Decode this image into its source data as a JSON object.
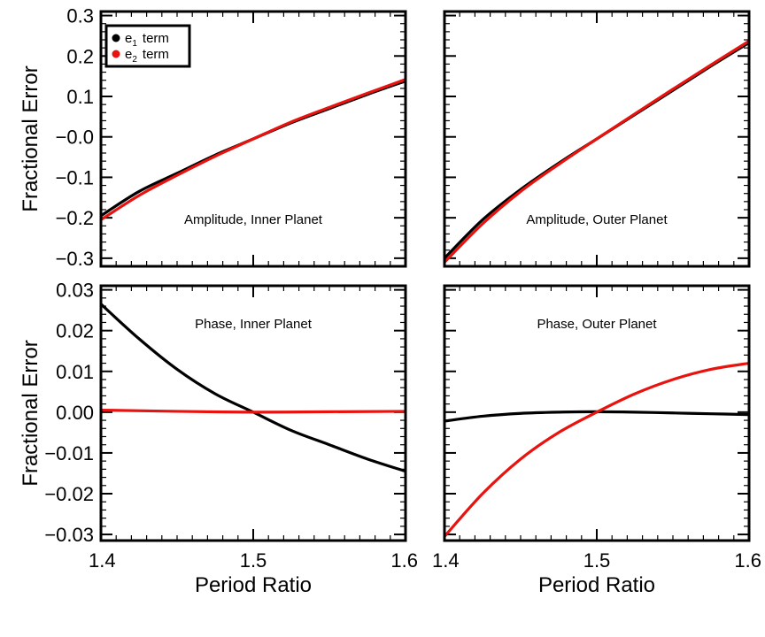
{
  "colors": {
    "e1": "#000000",
    "e2": "#e8130f"
  },
  "legend": {
    "entries": [
      {
        "key": "e1",
        "base": "e",
        "sub": "1",
        "label": "term"
      },
      {
        "key": "e2",
        "base": "e",
        "sub": "2",
        "label": "term"
      }
    ]
  },
  "chart_data": [
    {
      "type": "line",
      "title": "Amplitude, Inner Planet",
      "xlabel": "",
      "ylabel": "Fractional Error",
      "xlim": [
        1.4,
        1.6
      ],
      "ylim": [
        -0.32,
        0.31
      ],
      "yticks": [
        -0.3,
        -0.2,
        -0.1,
        0.0,
        0.1,
        0.2,
        0.3
      ],
      "yticklabels": [
        "−0.3",
        "−0.2",
        "−0.1",
        "−0.0",
        "0.1",
        "0.2",
        "0.3"
      ],
      "xticks": [
        1.4,
        1.5,
        1.6
      ],
      "xticklabels": [],
      "legend": true,
      "series": [
        {
          "name": "e1 term",
          "color_key": "e1",
          "x": [
            1.4,
            1.425,
            1.45,
            1.475,
            1.5,
            1.525,
            1.55,
            1.575,
            1.6
          ],
          "y": [
            -0.195,
            -0.135,
            -0.09,
            -0.045,
            -0.005,
            0.035,
            0.07,
            0.105,
            0.138
          ]
        },
        {
          "name": "e2 term",
          "color_key": "e2",
          "x": [
            1.4,
            1.425,
            1.45,
            1.475,
            1.5,
            1.525,
            1.55,
            1.575,
            1.6
          ],
          "y": [
            -0.205,
            -0.145,
            -0.095,
            -0.048,
            -0.005,
            0.037,
            0.073,
            0.108,
            0.142
          ]
        }
      ]
    },
    {
      "type": "line",
      "title": "Amplitude, Outer Planet",
      "xlabel": "",
      "ylabel": "",
      "xlim": [
        1.4,
        1.6
      ],
      "ylim": [
        -0.32,
        0.31
      ],
      "yticks": [
        -0.3,
        -0.2,
        -0.1,
        0.0,
        0.1,
        0.2,
        0.3
      ],
      "yticklabels": [],
      "xticks": [
        1.4,
        1.5,
        1.6
      ],
      "xticklabels": [],
      "legend": false,
      "series": [
        {
          "name": "e1 term",
          "color_key": "e1",
          "x": [
            1.4,
            1.425,
            1.45,
            1.475,
            1.5,
            1.525,
            1.55,
            1.575,
            1.6
          ],
          "y": [
            -0.3,
            -0.205,
            -0.13,
            -0.065,
            -0.005,
            0.055,
            0.115,
            0.175,
            0.233
          ]
        },
        {
          "name": "e2 term",
          "color_key": "e2",
          "x": [
            1.4,
            1.425,
            1.45,
            1.475,
            1.5,
            1.525,
            1.55,
            1.575,
            1.6
          ],
          "y": [
            -0.31,
            -0.215,
            -0.135,
            -0.068,
            -0.005,
            0.057,
            0.118,
            0.178,
            0.237
          ]
        }
      ]
    },
    {
      "type": "line",
      "title": "Phase, Inner Planet",
      "xlabel": "Period Ratio",
      "ylabel": "Fractional Error",
      "xlim": [
        1.4,
        1.6
      ],
      "ylim": [
        -0.0315,
        0.031
      ],
      "yticks": [
        -0.03,
        -0.02,
        -0.01,
        0.0,
        0.01,
        0.02,
        0.03
      ],
      "yticklabels": [
        "−0.03",
        "−0.02",
        "−0.01",
        "0.00",
        "0.01",
        "0.02",
        "0.03"
      ],
      "xticks": [
        1.4,
        1.5,
        1.6
      ],
      "xticklabels": [
        "1.4",
        "1.5",
        "1.6"
      ],
      "legend": false,
      "series": [
        {
          "name": "e1 term",
          "color_key": "e1",
          "x": [
            1.4,
            1.425,
            1.45,
            1.475,
            1.5,
            1.525,
            1.55,
            1.575,
            1.6
          ],
          "y": [
            0.0265,
            0.018,
            0.0105,
            0.0045,
            0.0,
            -0.0045,
            -0.008,
            -0.0115,
            -0.0145
          ]
        },
        {
          "name": "e2 term",
          "color_key": "e2",
          "x": [
            1.4,
            1.45,
            1.5,
            1.55,
            1.6
          ],
          "y": [
            0.0005,
            0.0002,
            0.0,
            0.0001,
            0.0002
          ]
        }
      ]
    },
    {
      "type": "line",
      "title": "Phase, Outer Planet",
      "xlabel": "Period Ratio",
      "ylabel": "",
      "xlim": [
        1.4,
        1.6
      ],
      "ylim": [
        -0.0315,
        0.031
      ],
      "yticks": [
        -0.03,
        -0.02,
        -0.01,
        0.0,
        0.01,
        0.02,
        0.03
      ],
      "yticklabels": [],
      "xticks": [
        1.4,
        1.5,
        1.6
      ],
      "xticklabels": [
        "1.4",
        "1.5",
        "1.6"
      ],
      "legend": false,
      "series": [
        {
          "name": "e1 term",
          "color_key": "e1",
          "x": [
            1.4,
            1.425,
            1.45,
            1.475,
            1.5,
            1.525,
            1.55,
            1.575,
            1.6
          ],
          "y": [
            -0.0022,
            -0.001,
            -0.0003,
            0.0,
            0.0001,
            0.0,
            -0.0002,
            -0.0004,
            -0.0006
          ]
        },
        {
          "name": "e2 term",
          "color_key": "e2",
          "x": [
            1.4,
            1.425,
            1.45,
            1.475,
            1.5,
            1.525,
            1.55,
            1.575,
            1.6
          ],
          "y": [
            -0.0305,
            -0.02,
            -0.0115,
            -0.005,
            0.0,
            0.0045,
            0.008,
            0.0105,
            0.012
          ]
        }
      ]
    }
  ]
}
